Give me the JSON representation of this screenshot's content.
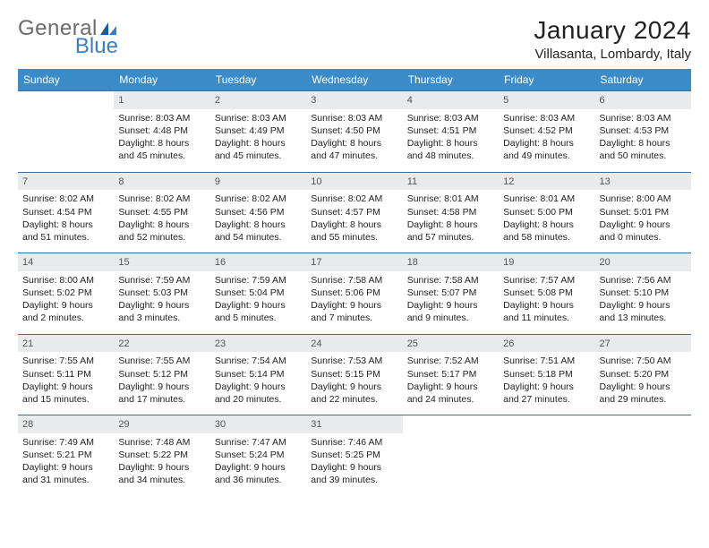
{
  "brand": {
    "name1": "General",
    "name2": "Blue"
  },
  "title": "January 2024",
  "location": "Villasanta, Lombardy, Italy",
  "colors": {
    "header_bg": "#3b8bc9",
    "header_text": "#ffffff",
    "row_border": "#3b6fa0",
    "daynum_bg": "#e9eaec",
    "brand_gray": "#6b6b6b",
    "brand_blue": "#3a7fc4"
  },
  "weekdays": [
    "Sunday",
    "Monday",
    "Tuesday",
    "Wednesday",
    "Thursday",
    "Friday",
    "Saturday"
  ],
  "weeks": [
    [
      {
        "n": "",
        "lines": []
      },
      {
        "n": "1",
        "lines": [
          "Sunrise: 8:03 AM",
          "Sunset: 4:48 PM",
          "Daylight: 8 hours and 45 minutes."
        ]
      },
      {
        "n": "2",
        "lines": [
          "Sunrise: 8:03 AM",
          "Sunset: 4:49 PM",
          "Daylight: 8 hours and 45 minutes."
        ]
      },
      {
        "n": "3",
        "lines": [
          "Sunrise: 8:03 AM",
          "Sunset: 4:50 PM",
          "Daylight: 8 hours and 47 minutes."
        ]
      },
      {
        "n": "4",
        "lines": [
          "Sunrise: 8:03 AM",
          "Sunset: 4:51 PM",
          "Daylight: 8 hours and 48 minutes."
        ]
      },
      {
        "n": "5",
        "lines": [
          "Sunrise: 8:03 AM",
          "Sunset: 4:52 PM",
          "Daylight: 8 hours and 49 minutes."
        ]
      },
      {
        "n": "6",
        "lines": [
          "Sunrise: 8:03 AM",
          "Sunset: 4:53 PM",
          "Daylight: 8 hours and 50 minutes."
        ]
      }
    ],
    [
      {
        "n": "7",
        "lines": [
          "Sunrise: 8:02 AM",
          "Sunset: 4:54 PM",
          "Daylight: 8 hours and 51 minutes."
        ]
      },
      {
        "n": "8",
        "lines": [
          "Sunrise: 8:02 AM",
          "Sunset: 4:55 PM",
          "Daylight: 8 hours and 52 minutes."
        ]
      },
      {
        "n": "9",
        "lines": [
          "Sunrise: 8:02 AM",
          "Sunset: 4:56 PM",
          "Daylight: 8 hours and 54 minutes."
        ]
      },
      {
        "n": "10",
        "lines": [
          "Sunrise: 8:02 AM",
          "Sunset: 4:57 PM",
          "Daylight: 8 hours and 55 minutes."
        ]
      },
      {
        "n": "11",
        "lines": [
          "Sunrise: 8:01 AM",
          "Sunset: 4:58 PM",
          "Daylight: 8 hours and 57 minutes."
        ]
      },
      {
        "n": "12",
        "lines": [
          "Sunrise: 8:01 AM",
          "Sunset: 5:00 PM",
          "Daylight: 8 hours and 58 minutes."
        ]
      },
      {
        "n": "13",
        "lines": [
          "Sunrise: 8:00 AM",
          "Sunset: 5:01 PM",
          "Daylight: 9 hours and 0 minutes."
        ]
      }
    ],
    [
      {
        "n": "14",
        "lines": [
          "Sunrise: 8:00 AM",
          "Sunset: 5:02 PM",
          "Daylight: 9 hours and 2 minutes."
        ]
      },
      {
        "n": "15",
        "lines": [
          "Sunrise: 7:59 AM",
          "Sunset: 5:03 PM",
          "Daylight: 9 hours and 3 minutes."
        ]
      },
      {
        "n": "16",
        "lines": [
          "Sunrise: 7:59 AM",
          "Sunset: 5:04 PM",
          "Daylight: 9 hours and 5 minutes."
        ]
      },
      {
        "n": "17",
        "lines": [
          "Sunrise: 7:58 AM",
          "Sunset: 5:06 PM",
          "Daylight: 9 hours and 7 minutes."
        ]
      },
      {
        "n": "18",
        "lines": [
          "Sunrise: 7:58 AM",
          "Sunset: 5:07 PM",
          "Daylight: 9 hours and 9 minutes."
        ]
      },
      {
        "n": "19",
        "lines": [
          "Sunrise: 7:57 AM",
          "Sunset: 5:08 PM",
          "Daylight: 9 hours and 11 minutes."
        ]
      },
      {
        "n": "20",
        "lines": [
          "Sunrise: 7:56 AM",
          "Sunset: 5:10 PM",
          "Daylight: 9 hours and 13 minutes."
        ]
      }
    ],
    [
      {
        "n": "21",
        "lines": [
          "Sunrise: 7:55 AM",
          "Sunset: 5:11 PM",
          "Daylight: 9 hours and 15 minutes."
        ]
      },
      {
        "n": "22",
        "lines": [
          "Sunrise: 7:55 AM",
          "Sunset: 5:12 PM",
          "Daylight: 9 hours and 17 minutes."
        ]
      },
      {
        "n": "23",
        "lines": [
          "Sunrise: 7:54 AM",
          "Sunset: 5:14 PM",
          "Daylight: 9 hours and 20 minutes."
        ]
      },
      {
        "n": "24",
        "lines": [
          "Sunrise: 7:53 AM",
          "Sunset: 5:15 PM",
          "Daylight: 9 hours and 22 minutes."
        ]
      },
      {
        "n": "25",
        "lines": [
          "Sunrise: 7:52 AM",
          "Sunset: 5:17 PM",
          "Daylight: 9 hours and 24 minutes."
        ]
      },
      {
        "n": "26",
        "lines": [
          "Sunrise: 7:51 AM",
          "Sunset: 5:18 PM",
          "Daylight: 9 hours and 27 minutes."
        ]
      },
      {
        "n": "27",
        "lines": [
          "Sunrise: 7:50 AM",
          "Sunset: 5:20 PM",
          "Daylight: 9 hours and 29 minutes."
        ]
      }
    ],
    [
      {
        "n": "28",
        "lines": [
          "Sunrise: 7:49 AM",
          "Sunset: 5:21 PM",
          "Daylight: 9 hours and 31 minutes."
        ]
      },
      {
        "n": "29",
        "lines": [
          "Sunrise: 7:48 AM",
          "Sunset: 5:22 PM",
          "Daylight: 9 hours and 34 minutes."
        ]
      },
      {
        "n": "30",
        "lines": [
          "Sunrise: 7:47 AM",
          "Sunset: 5:24 PM",
          "Daylight: 9 hours and 36 minutes."
        ]
      },
      {
        "n": "31",
        "lines": [
          "Sunrise: 7:46 AM",
          "Sunset: 5:25 PM",
          "Daylight: 9 hours and 39 minutes."
        ]
      },
      {
        "n": "",
        "lines": []
      },
      {
        "n": "",
        "lines": []
      },
      {
        "n": "",
        "lines": []
      }
    ]
  ]
}
